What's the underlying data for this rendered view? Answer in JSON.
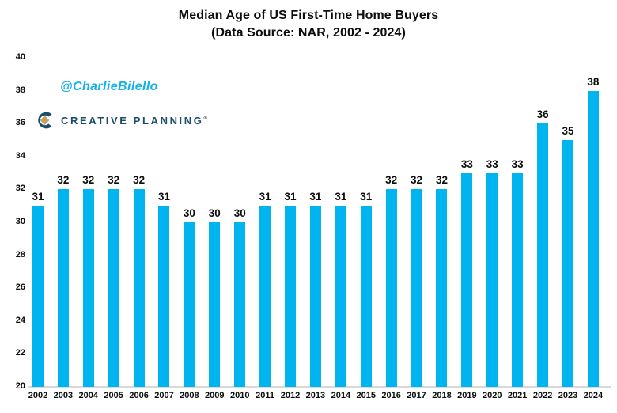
{
  "title": {
    "line1": "Median Age of US First-Time Home Buyers",
    "line2": "(Data Source: NAR, 2002 - 2024)"
  },
  "watermark": "@CharlieBilello",
  "logo": {
    "text": "CREATIVE PLANNING",
    "mark": "®"
  },
  "colors": {
    "bar": "#00b4ef",
    "watermark": "#14b2ea",
    "logo_navy": "#1c4e6b",
    "logo_gold": "#c3a262",
    "axis_line": "#d9d9d9",
    "text": "#0d0d0d"
  },
  "chart_data": {
    "type": "bar",
    "title": "Median Age of US First-Time Home Buyers",
    "subtitle": "(Data Source: NAR, 2002 - 2024)",
    "xlabel": "",
    "ylabel": "",
    "categories": [
      "2002",
      "2003",
      "2004",
      "2005",
      "2006",
      "2007",
      "2008",
      "2009",
      "2010",
      "2011",
      "2012",
      "2013",
      "2014",
      "2015",
      "2016",
      "2017",
      "2018",
      "2019",
      "2020",
      "2021",
      "2022",
      "2023",
      "2024"
    ],
    "values": [
      31,
      32,
      32,
      32,
      32,
      31,
      30,
      30,
      30,
      31,
      31,
      31,
      31,
      31,
      32,
      32,
      32,
      33,
      33,
      33,
      36,
      35,
      38
    ],
    "ylim": [
      20,
      40
    ],
    "y_ticks": [
      20,
      22,
      24,
      26,
      28,
      30,
      32,
      34,
      36,
      38,
      40
    ],
    "grid": false,
    "legend": false,
    "data_labels": true,
    "bar_color": "#00b4ef"
  }
}
